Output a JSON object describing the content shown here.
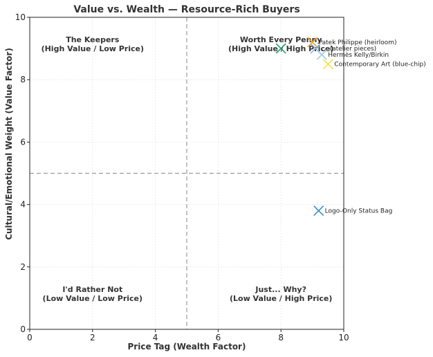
{
  "chart_data": {
    "type": "scatter",
    "title": "Value vs. Wealth — Resource-Rich Buyers",
    "xlabel": "Price Tag (Wealth Factor)",
    "ylabel": "Cultural/Emotional Weight (Value Factor)",
    "xlim": [
      0,
      10
    ],
    "ylim": [
      0,
      10
    ],
    "xticks": [
      0,
      2,
      4,
      6,
      8,
      10
    ],
    "yticks": [
      0,
      2,
      4,
      6,
      8,
      10
    ],
    "grid": true,
    "marker": "x",
    "dividers": {
      "x": 5,
      "y": 5
    },
    "quadrants": [
      {
        "id": "top-left",
        "lines": [
          "The Keepers",
          "(High Value / Low Price)"
        ],
        "x": 2,
        "y": 9.2
      },
      {
        "id": "top-right",
        "lines": [
          "Worth Every Penny",
          "(High Value / High Price)"
        ],
        "x": 8,
        "y": 9.2
      },
      {
        "id": "bottom-left",
        "lines": [
          "I'd Rather Not",
          "(Low Value / Low Price)"
        ],
        "x": 2,
        "y": 1.2
      },
      {
        "id": "bottom-right",
        "lines": [
          "Just... Why?",
          "(Low Value / High Price)"
        ],
        "x": 8,
        "y": 1.2
      }
    ],
    "points": [
      {
        "label": "",
        "x": 8.0,
        "y": 9.0,
        "color": "#1b9e77"
      },
      {
        "label": "Patek Philippe (heirloom)",
        "x": 9.0,
        "y": 9.2,
        "color": "#f0a020"
      },
      {
        "label": "... (atelier pieces)",
        "x": 9.1,
        "y": 9.0,
        "color": "#7fb3e0"
      },
      {
        "label": "Hermès Kelly/Birkin",
        "x": 9.3,
        "y": 8.8,
        "color": "#9ecae1"
      },
      {
        "label": "Contemporary Art (blue-chip)",
        "x": 9.5,
        "y": 8.5,
        "color": "#f2e34a"
      },
      {
        "label": "Logo-Only Status Bag",
        "x": 9.2,
        "y": 3.8,
        "color": "#3a8fc4"
      }
    ]
  }
}
